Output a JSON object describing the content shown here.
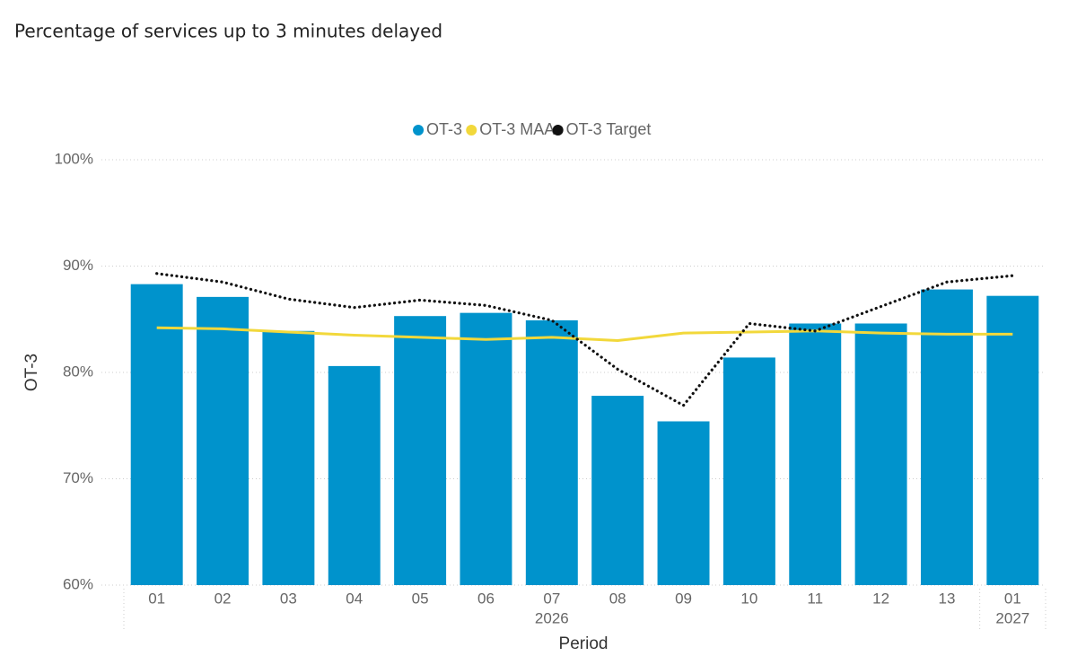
{
  "chart_data": {
    "type": "bar",
    "title": "Percentage of services up to 3 minutes delayed",
    "x_label": "Period",
    "y_label": "OT-3",
    "categories": [
      "01",
      "02",
      "03",
      "04",
      "05",
      "06",
      "07",
      "08",
      "09",
      "10",
      "11",
      "12",
      "13",
      "01"
    ],
    "x_groups": [
      {
        "label": "2026",
        "count": 13
      },
      {
        "label": "2027",
        "count": 1
      }
    ],
    "series": [
      {
        "name": "OT-3",
        "type": "bar",
        "color": "#0093cc",
        "values": [
          88.3,
          87.1,
          83.9,
          80.6,
          85.3,
          85.6,
          84.9,
          77.8,
          75.4,
          81.4,
          84.6,
          84.6,
          87.8,
          87.2
        ]
      },
      {
        "name": "OT-3 MAA",
        "type": "line",
        "color": "#f2d83b",
        "values": [
          84.2,
          84.1,
          83.8,
          83.5,
          83.3,
          83.1,
          83.3,
          83.0,
          83.7,
          83.8,
          83.9,
          83.7,
          83.6,
          83.6
        ]
      },
      {
        "name": "OT-3 Target",
        "type": "line",
        "dash": "dotted",
        "color": "#111111",
        "values": [
          89.3,
          88.5,
          86.9,
          86.1,
          86.8,
          86.3,
          84.9,
          80.3,
          76.9,
          84.6,
          83.9,
          86.2,
          88.5,
          89.1
        ]
      }
    ],
    "ylim": [
      60,
      100
    ],
    "yticks": [
      {
        "value": 60,
        "label": "60%"
      },
      {
        "value": 70,
        "label": "70%"
      },
      {
        "value": 80,
        "label": "80%"
      },
      {
        "value": 90,
        "label": "90%"
      },
      {
        "value": 100,
        "label": "100%"
      }
    ],
    "grid": true,
    "legend": "top"
  }
}
